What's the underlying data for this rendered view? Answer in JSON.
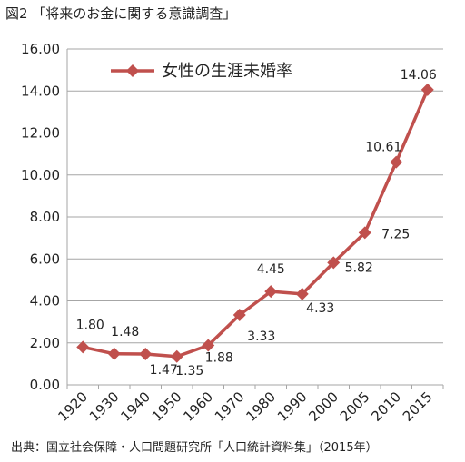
{
  "figure": {
    "title": "図2 「将来のお金に関する意識調査」",
    "source": "出典：国立社会保障・人口問題研究所「人口統計資料集」（2015年）"
  },
  "chart_data": {
    "type": "line",
    "categories": [
      "1920",
      "1930",
      "1940",
      "1950",
      "1960",
      "1970",
      "1980",
      "1990",
      "2000",
      "2005",
      "2010",
      "2015"
    ],
    "series": [
      {
        "name": "女性の生涯未婚率",
        "values": [
          1.8,
          1.48,
          1.47,
          1.35,
          1.88,
          3.33,
          4.45,
          4.33,
          5.82,
          7.25,
          10.61,
          14.06
        ],
        "labels": [
          "1.80",
          "1.48",
          "1.47",
          "1.35",
          "1.88",
          "3.33",
          "4.45",
          "4.33",
          "5.82",
          "7.25",
          "10.61",
          "14.06"
        ],
        "color": "#c0504d"
      }
    ],
    "ylim": [
      0,
      16
    ],
    "yticks": [
      "0.00",
      "2.00",
      "4.00",
      "6.00",
      "8.00",
      "10.00",
      "12.00",
      "14.00",
      "16.00"
    ],
    "grid": true,
    "legend_position": "top-left"
  }
}
